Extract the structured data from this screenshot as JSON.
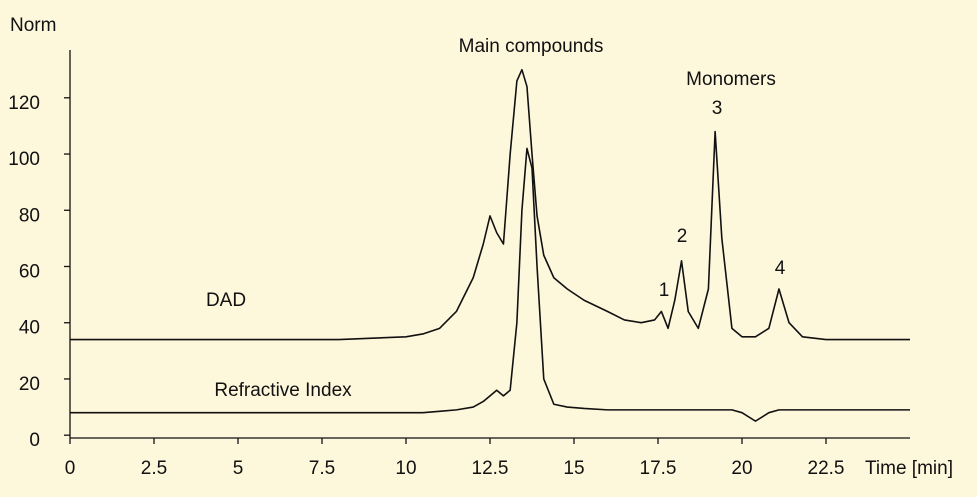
{
  "chart_data": {
    "type": "line",
    "y_label": "Norm",
    "x_label": "Time [min]",
    "annotations": [
      "Main compounds",
      "Monomers",
      "1",
      "2",
      "3",
      "4"
    ],
    "xlim": [
      0,
      25
    ],
    "ylim": [
      -1,
      137
    ],
    "xticks": [
      0,
      2.5,
      5,
      7.5,
      10,
      12.5,
      15,
      17.5,
      20,
      22.5
    ],
    "yticks": [
      0,
      20,
      40,
      60,
      80,
      100,
      120
    ],
    "grid": false,
    "x": [
      0,
      2,
      4,
      6,
      8,
      9,
      10,
      10.5,
      11,
      11.5,
      12,
      12.3,
      12.5,
      12.7,
      12.9,
      13.1,
      13.3,
      13.45,
      13.6,
      13.75,
      13.9,
      14.1,
      14.4,
      14.8,
      15.3,
      16,
      16.5,
      17,
      17.4,
      17.6,
      17.8,
      18,
      18.2,
      18.4,
      18.7,
      19,
      19.2,
      19.4,
      19.7,
      20,
      20.4,
      20.8,
      21.1,
      21.4,
      21.8,
      22.5,
      24,
      25
    ],
    "series": [
      {
        "name": "DAD",
        "color": "#111111",
        "values": [
          34,
          34,
          34,
          34,
          34,
          34.5,
          35,
          36,
          38,
          44,
          56,
          68,
          78,
          72,
          68,
          100,
          126,
          130,
          124,
          100,
          78,
          64,
          56,
          52,
          48,
          44,
          41,
          40,
          41,
          44,
          38,
          48,
          62,
          44,
          38,
          52,
          108,
          70,
          38,
          35,
          35,
          38,
          52,
          40,
          35,
          34,
          34,
          34
        ]
      },
      {
        "name": "Refractive Index",
        "color": "#111111",
        "values": [
          8,
          8,
          8,
          8,
          8,
          8,
          8,
          8,
          8.5,
          9,
          10,
          12,
          14,
          16,
          14,
          16,
          40,
          80,
          102,
          95,
          60,
          20,
          11,
          10,
          9.5,
          9,
          9,
          9,
          9,
          9,
          9,
          9,
          9,
          9,
          9,
          9,
          9,
          9,
          9,
          8,
          5,
          8,
          9,
          9,
          9,
          9,
          9,
          9
        ]
      }
    ]
  }
}
